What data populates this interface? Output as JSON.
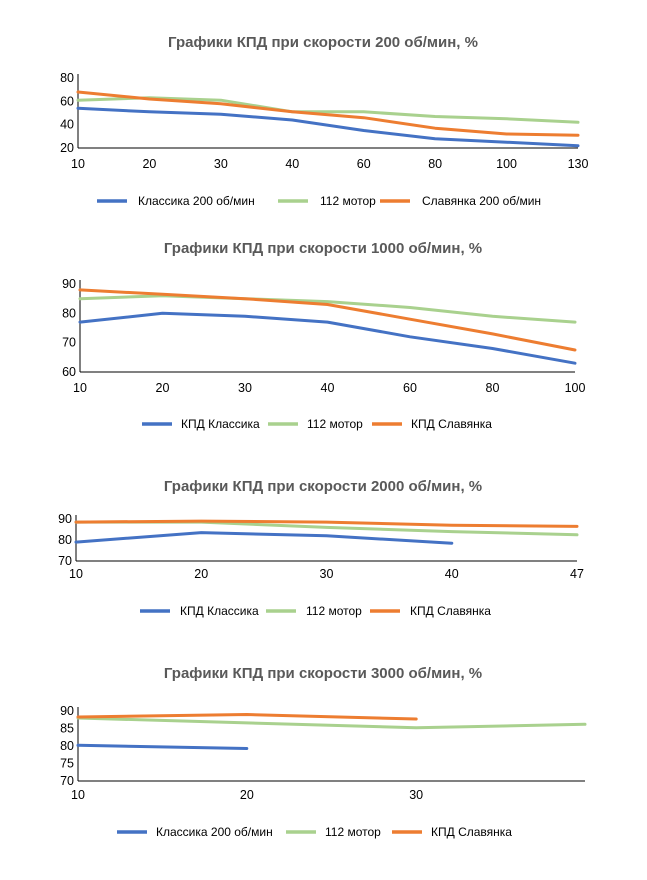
{
  "colors": {
    "blue": "#4472c4",
    "green": "#a9d18e",
    "orange": "#ed7d31"
  },
  "chart_data": [
    {
      "type": "line",
      "title": "Графики КПД при скорости 200 об/мин, %",
      "categories": [
        "10",
        "20",
        "30",
        "40",
        "60",
        "80",
        "100",
        "130"
      ],
      "ylim": [
        20,
        80
      ],
      "yticks": [
        20,
        40,
        60,
        80
      ],
      "legend": "bottom",
      "series": [
        {
          "name": "Классика 200 об/мин",
          "color": "#4472c4",
          "values": [
            54,
            51,
            49,
            44,
            35,
            28,
            25,
            22
          ]
        },
        {
          "name": "112 мотор",
          "color": "#a9d18e",
          "values": [
            61,
            63,
            61,
            51,
            51,
            47,
            45,
            42
          ]
        },
        {
          "name": "Славянка 200 об/мин",
          "color": "#ed7d31",
          "values": [
            68,
            62,
            58,
            51,
            46,
            37,
            32,
            31
          ]
        }
      ]
    },
    {
      "type": "line",
      "title": "Графики КПД при скорости 1000 об/мин, %",
      "categories": [
        "10",
        "20",
        "30",
        "40",
        "60",
        "80",
        "100"
      ],
      "ylim": [
        60,
        90
      ],
      "yticks": [
        60,
        70,
        80,
        90
      ],
      "legend": "bottom",
      "series": [
        {
          "name": "КПД Классика",
          "color": "#4472c4",
          "values": [
            77,
            80,
            79,
            77,
            72,
            68,
            63
          ]
        },
        {
          "name": "112 мотор",
          "color": "#a9d18e",
          "values": [
            85,
            86,
            85,
            84,
            82,
            79,
            77
          ]
        },
        {
          "name": "КПД Славянка",
          "color": "#ed7d31",
          "values": [
            88,
            86.5,
            85,
            83,
            78,
            73,
            67.5
          ]
        }
      ]
    },
    {
      "type": "line",
      "title": "Графики КПД при скорости 2000 об/мин, %",
      "categories": [
        "10",
        "20",
        "30",
        "40",
        "47"
      ],
      "ylim": [
        70,
        90
      ],
      "yticks": [
        70,
        80,
        90
      ],
      "legend": "bottom",
      "series": [
        {
          "name": "КПД Классика",
          "color": "#4472c4",
          "values": [
            79,
            83.5,
            82,
            78.5,
            null
          ]
        },
        {
          "name": "112 мотор",
          "color": "#a9d18e",
          "values": [
            88.5,
            88.5,
            86,
            84,
            82.5
          ]
        },
        {
          "name": "КПД Славянка",
          "color": "#ed7d31",
          "values": [
            88.5,
            89,
            88.5,
            87,
            86.5
          ]
        }
      ]
    },
    {
      "type": "line",
      "title": "Графики КПД при скорости 3000 об/мин, %",
      "categories": [
        "10",
        "20",
        "30",
        ""
      ],
      "ylim": [
        70,
        90
      ],
      "yticks": [
        70,
        75,
        80,
        85,
        90
      ],
      "legend": "bottom",
      "series": [
        {
          "name": "Классика 200 об/мин",
          "color": "#4472c4",
          "values": [
            80.2,
            79.3,
            null,
            null
          ]
        },
        {
          "name": "112 мотор",
          "color": "#a9d18e",
          "values": [
            88,
            86.6,
            85.2,
            86.2
          ]
        },
        {
          "name": "КПД Славянка",
          "color": "#ed7d31",
          "values": [
            88.3,
            89,
            87.7,
            null
          ]
        }
      ]
    }
  ]
}
